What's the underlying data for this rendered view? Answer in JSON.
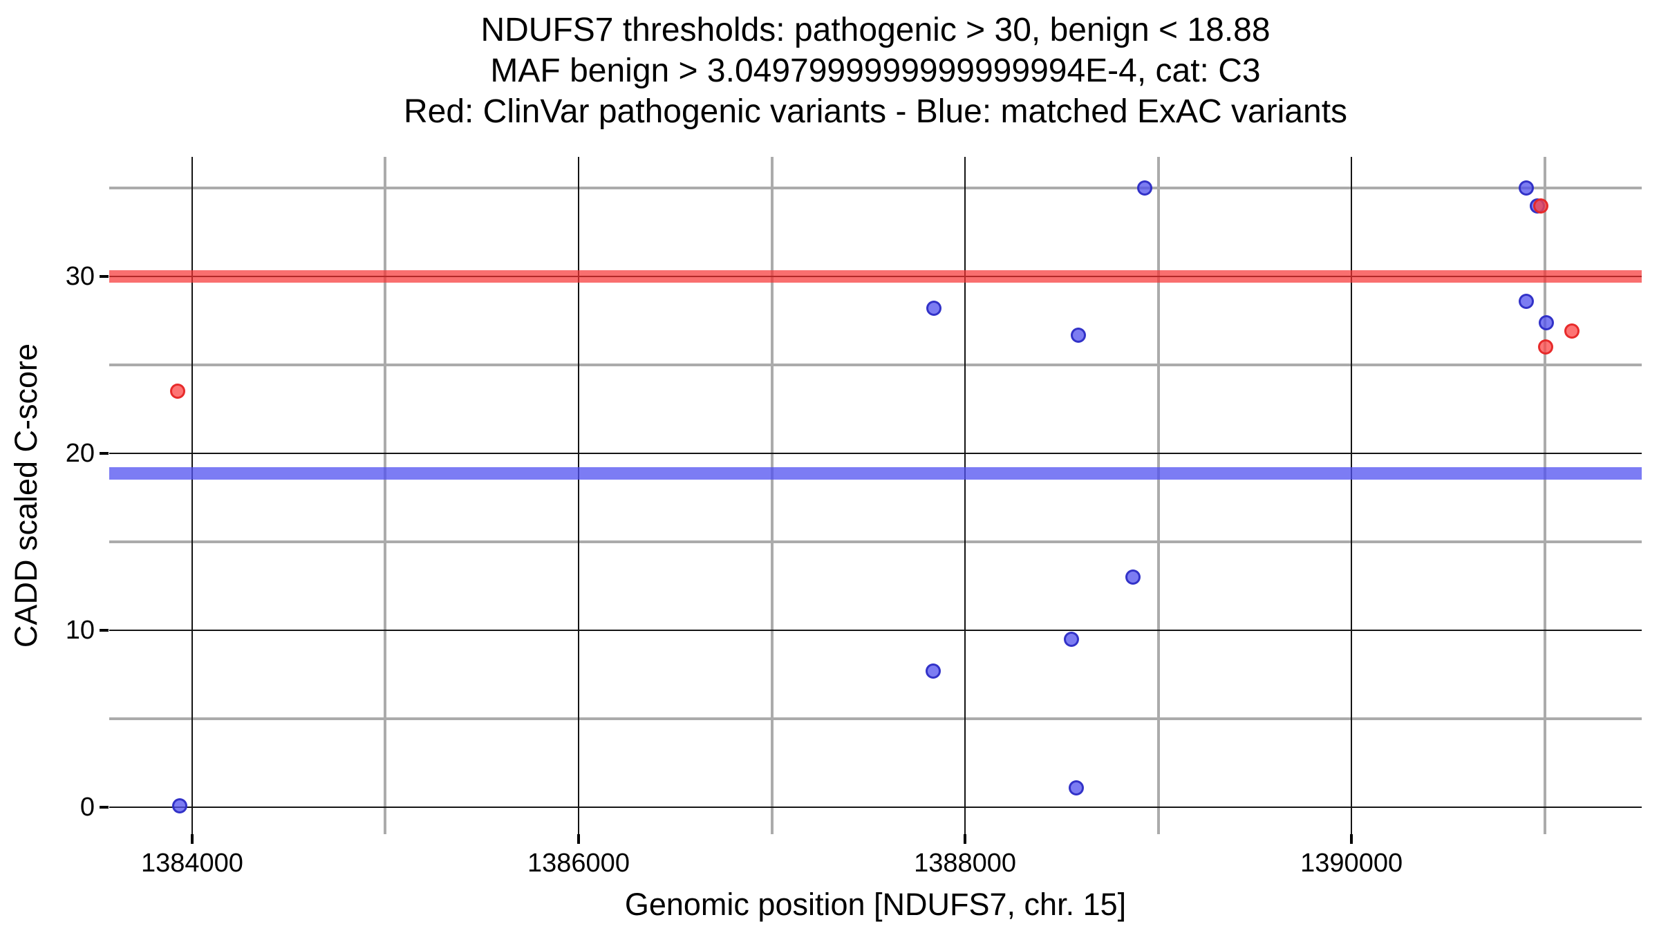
{
  "title": {
    "lines": [
      "NDUFS7 thresholds: pathogenic > 30, benign < 18.88",
      "MAF benign > 3.0497999999999999994E-4, cat: C3",
      "Red: ClinVar pathogenic variants - Blue: matched ExAC variants"
    ]
  },
  "colors": {
    "pathogenic_band": "rgba(246,50,50,0.7)",
    "benign_band": "rgba(80,80,240,0.75)",
    "red_point_fill": "#FC4646",
    "blue_point_fill": "#5050EE",
    "major_gridline": "#141414",
    "minor_gridline": "#ABABAB"
  },
  "chart_data": {
    "type": "scatter",
    "title": "NDUFS7 thresholds: pathogenic > 30, benign < 18.88\nMAF benign > 3.0497999999999999994E-4, cat: C3\nRed: ClinVar pathogenic variants - Blue: matched ExAC variants",
    "xlabel": "Genomic position [NDUFS7, chr. 15]",
    "ylabel": "CADD scaled C-score",
    "xlim": [
      1383571,
      1391502
    ],
    "ylim": [
      -1.52,
      36.76
    ],
    "grid": true,
    "legend_position": "none (encoded in title line 3)",
    "x_axis": {
      "major_ticks": [
        1384000,
        1386000,
        1388000,
        1390000
      ],
      "major_tick_labels": [
        "1384000",
        "1386000",
        "1388000",
        "1390000"
      ],
      "minor_gridlines": [
        1385000,
        1387000,
        1389000,
        1391000
      ]
    },
    "y_axis": {
      "major_ticks": [
        0,
        10,
        20,
        30
      ],
      "major_tick_labels": [
        "0",
        "10",
        "20",
        "30"
      ],
      "minor_gridlines": [
        5,
        15,
        25,
        35
      ]
    },
    "thresholds": {
      "pathogenic_gt": 30,
      "benign_lt": 18.88,
      "maf_benign_gt": "3.0497999999999999994E-4",
      "category": "C3"
    },
    "bands": [
      {
        "name": "pathogenic-threshold-band",
        "y": 30,
        "color_key": "pathogenic_band"
      },
      {
        "name": "benign-threshold-band",
        "y": 18.88,
        "color_key": "benign_band"
      }
    ],
    "series": [
      {
        "name": "matched ExAC variants",
        "color": "blue",
        "points": [
          {
            "x": 1383936,
            "y": 0.1
          },
          {
            "x": 1387839,
            "y": 28.2
          },
          {
            "x": 1387835,
            "y": 7.7
          },
          {
            "x": 1388587,
            "y": 26.7
          },
          {
            "x": 1388551,
            "y": 9.5
          },
          {
            "x": 1388576,
            "y": 1.1
          },
          {
            "x": 1388869,
            "y": 13.0
          },
          {
            "x": 1388930,
            "y": 35.0
          },
          {
            "x": 1390905,
            "y": 35.0
          },
          {
            "x": 1390962,
            "y": 34.0
          },
          {
            "x": 1390905,
            "y": 28.6
          },
          {
            "x": 1391009,
            "y": 27.4
          }
        ]
      },
      {
        "name": "ClinVar pathogenic variants",
        "color": "red",
        "points": [
          {
            "x": 1383925,
            "y": 23.5
          },
          {
            "x": 1390980,
            "y": 34.0
          },
          {
            "x": 1391141,
            "y": 26.9
          },
          {
            "x": 1391005,
            "y": 26.0
          }
        ]
      }
    ]
  }
}
